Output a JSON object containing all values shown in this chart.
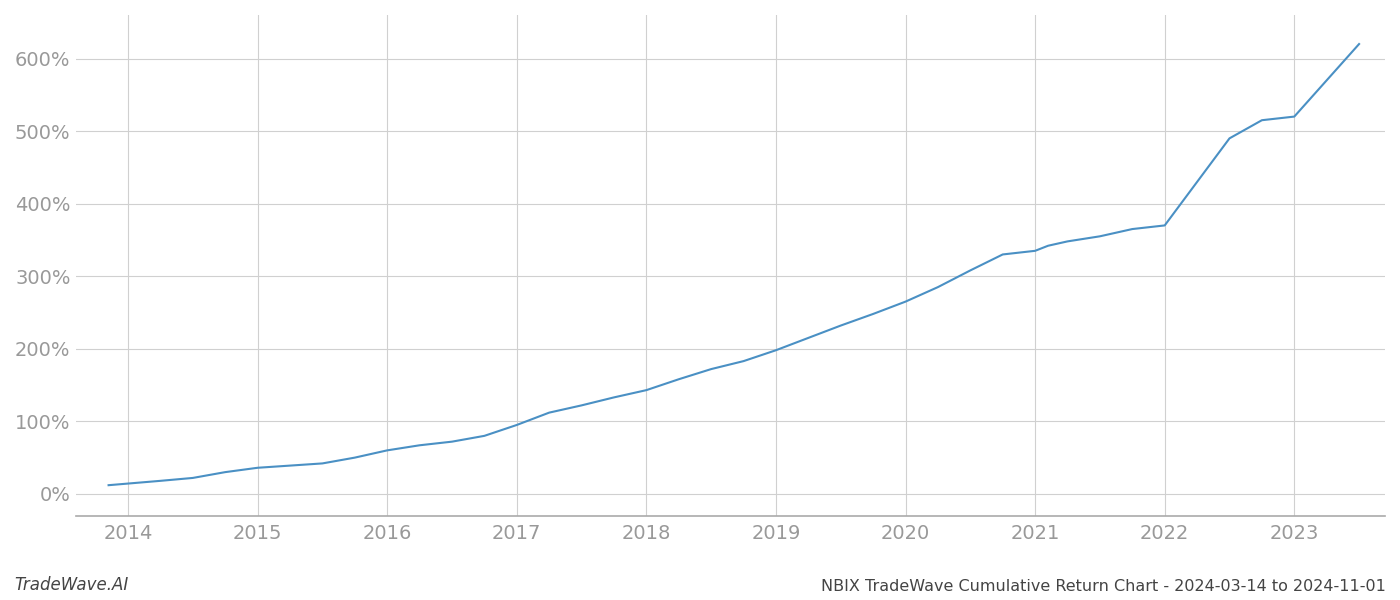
{
  "title": "NBIX TradeWave Cumulative Return Chart - 2024-03-14 to 2024-11-01",
  "watermark": "TradeWave.AI",
  "line_color": "#4a90c4",
  "background_color": "#ffffff",
  "grid_color": "#d0d0d0",
  "x_years": [
    2014,
    2015,
    2016,
    2017,
    2018,
    2019,
    2020,
    2021,
    2022,
    2023
  ],
  "y_ticks": [
    0,
    100,
    200,
    300,
    400,
    500,
    600
  ],
  "xlim": [
    2013.6,
    2023.7
  ],
  "ylim": [
    -30,
    660
  ],
  "data_x": [
    2013.85,
    2014.05,
    2014.25,
    2014.5,
    2014.75,
    2015.0,
    2015.25,
    2015.5,
    2015.75,
    2016.0,
    2016.25,
    2016.5,
    2016.75,
    2017.0,
    2017.25,
    2017.5,
    2017.75,
    2018.0,
    2018.25,
    2018.5,
    2018.75,
    2019.0,
    2019.25,
    2019.5,
    2019.75,
    2020.0,
    2020.25,
    2020.5,
    2020.75,
    2021.0,
    2021.1,
    2021.25,
    2021.5,
    2021.75,
    2022.0,
    2022.25,
    2022.5,
    2022.75,
    2023.0,
    2023.25,
    2023.5
  ],
  "data_y": [
    12,
    15,
    18,
    22,
    30,
    36,
    39,
    42,
    50,
    60,
    67,
    72,
    80,
    95,
    112,
    122,
    133,
    143,
    158,
    172,
    183,
    198,
    215,
    232,
    248,
    265,
    285,
    308,
    330,
    335,
    342,
    348,
    355,
    365,
    370,
    430,
    490,
    515,
    520,
    570,
    620
  ]
}
